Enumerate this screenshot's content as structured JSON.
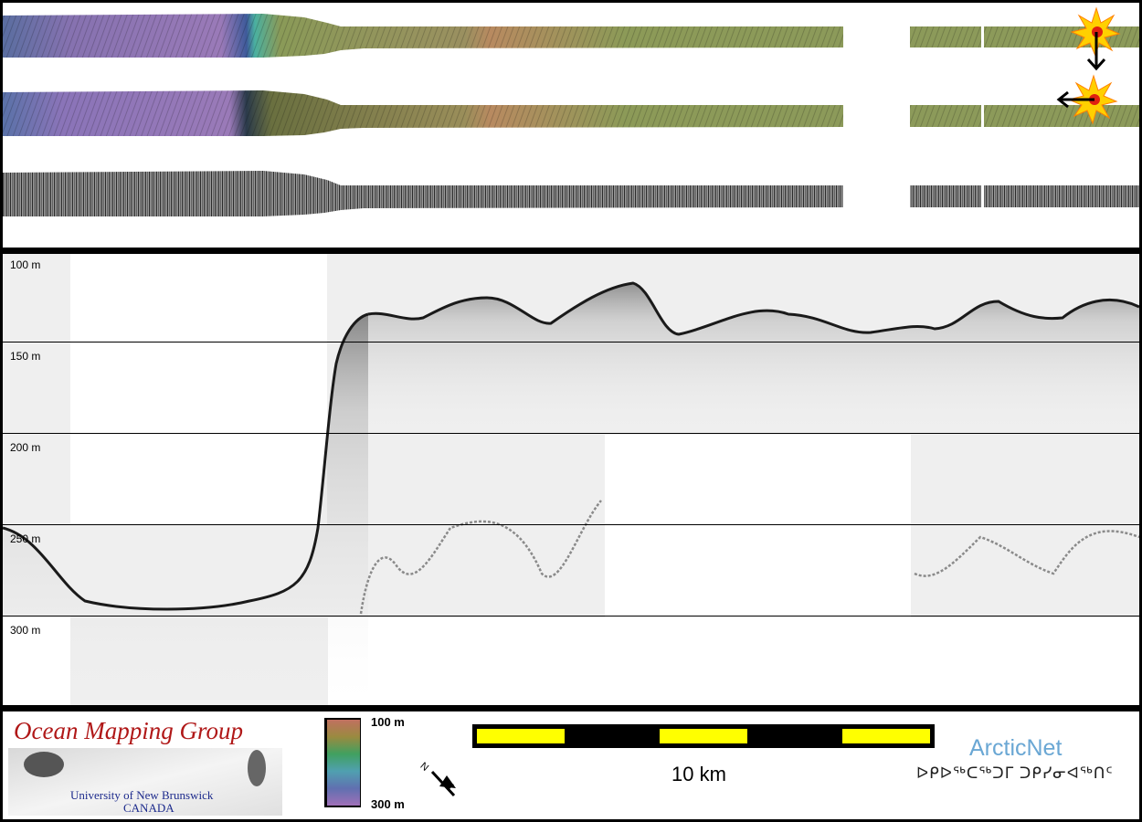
{
  "profile": {
    "depth_labels": [
      "100 m",
      "150 m",
      "200 m",
      "250 m",
      "300 m"
    ]
  },
  "legend": {
    "org_name": "Ocean Mapping Group",
    "org_university": "University of New Brunswick",
    "org_country": "CANADA",
    "colorbar_top": "100 m",
    "colorbar_bottom": "300 m",
    "north_label": "N",
    "scale_label": "10 km",
    "partner_name": "ArcticNet",
    "partner_syllabics": "ᐅᑭᐅᖅᑕᖅᑐᒥ ᑐᑭᓯᓂᐊᖅᑎᑦ"
  },
  "colors": {
    "border": "#000000",
    "scale_yellow": "#ffff00",
    "accent_red": "#b01818",
    "partner_blue": "#6aa7d4"
  }
}
